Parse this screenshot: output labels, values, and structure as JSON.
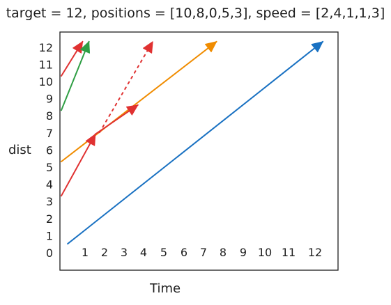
{
  "title": "target = 12, positions = [10,8,0,5,3], speed = [2,4,1,1,3]",
  "ylabel": "dist",
  "xlabel": "Time",
  "y_ticks": [
    "0",
    "1",
    "2",
    "3",
    "4",
    "5",
    "6",
    "7",
    "8",
    "9",
    "10",
    "11",
    "12"
  ],
  "x_ticks": [
    "1",
    "2",
    "3",
    "4",
    "5",
    "6",
    "7",
    "8",
    "9",
    "10",
    "11",
    "12"
  ],
  "colors": {
    "red": "#e03131",
    "green": "#2f9e44",
    "orange": "#f08c00",
    "blue": "#1971c2",
    "axis": "#1e1e1e"
  },
  "chart_data": {
    "type": "line",
    "xlabel": "Time",
    "ylabel": "dist",
    "xlim": [
      0,
      12
    ],
    "ylim": [
      0,
      12
    ],
    "series": [
      {
        "color": "red",
        "style": "solid",
        "points": [
          [
            0,
            10
          ],
          [
            1,
            12
          ]
        ]
      },
      {
        "color": "green",
        "style": "solid",
        "points": [
          [
            0,
            8
          ],
          [
            1.3,
            12
          ]
        ]
      },
      {
        "color": "orange",
        "style": "solid",
        "points": [
          [
            0,
            5
          ],
          [
            7.3,
            12
          ]
        ]
      },
      {
        "color": "red",
        "style": "solid",
        "points": [
          [
            0,
            3
          ],
          [
            1.6,
            6.6
          ]
        ]
      },
      {
        "color": "red",
        "style": "solid",
        "points": [
          [
            1.6,
            6.6
          ],
          [
            3.6,
            8.3
          ]
        ]
      },
      {
        "color": "red",
        "style": "dotted",
        "points": [
          [
            1.8,
            6.7
          ],
          [
            4.3,
            12
          ]
        ]
      },
      {
        "color": "blue",
        "style": "solid",
        "points": [
          [
            0.3,
            0.2
          ],
          [
            12.3,
            12
          ]
        ]
      }
    ]
  }
}
